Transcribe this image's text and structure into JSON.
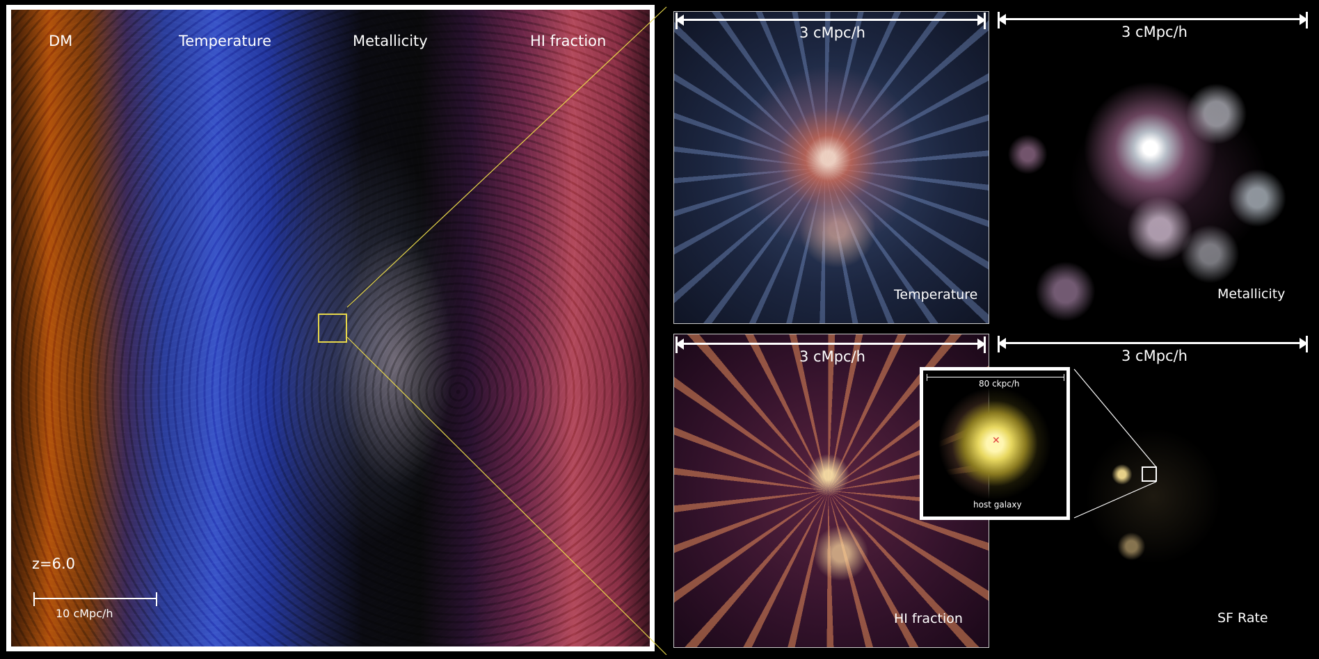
{
  "main": {
    "labels": {
      "dm": "DM",
      "temperature": "Temperature",
      "metallicity": "Metallicity",
      "hi_fraction": "HI fraction"
    },
    "redshift": "z=6.0",
    "scale": "10 cMpc/h"
  },
  "panels": {
    "temperature": {
      "scale": "3 cMpc/h",
      "label": "Temperature"
    },
    "metallicity": {
      "scale": "3 cMpc/h",
      "label": "Metallicity"
    },
    "hi_fraction": {
      "scale": "3 cMpc/h",
      "label": "HI fraction"
    },
    "sf_rate": {
      "scale": "3 cMpc/h",
      "label": "SF Rate"
    },
    "inset": {
      "scale": "80 ckpc/h",
      "label": "host galaxy"
    }
  },
  "colors": {
    "zoom_box": "#e8d84a",
    "marker": "#e04040"
  }
}
